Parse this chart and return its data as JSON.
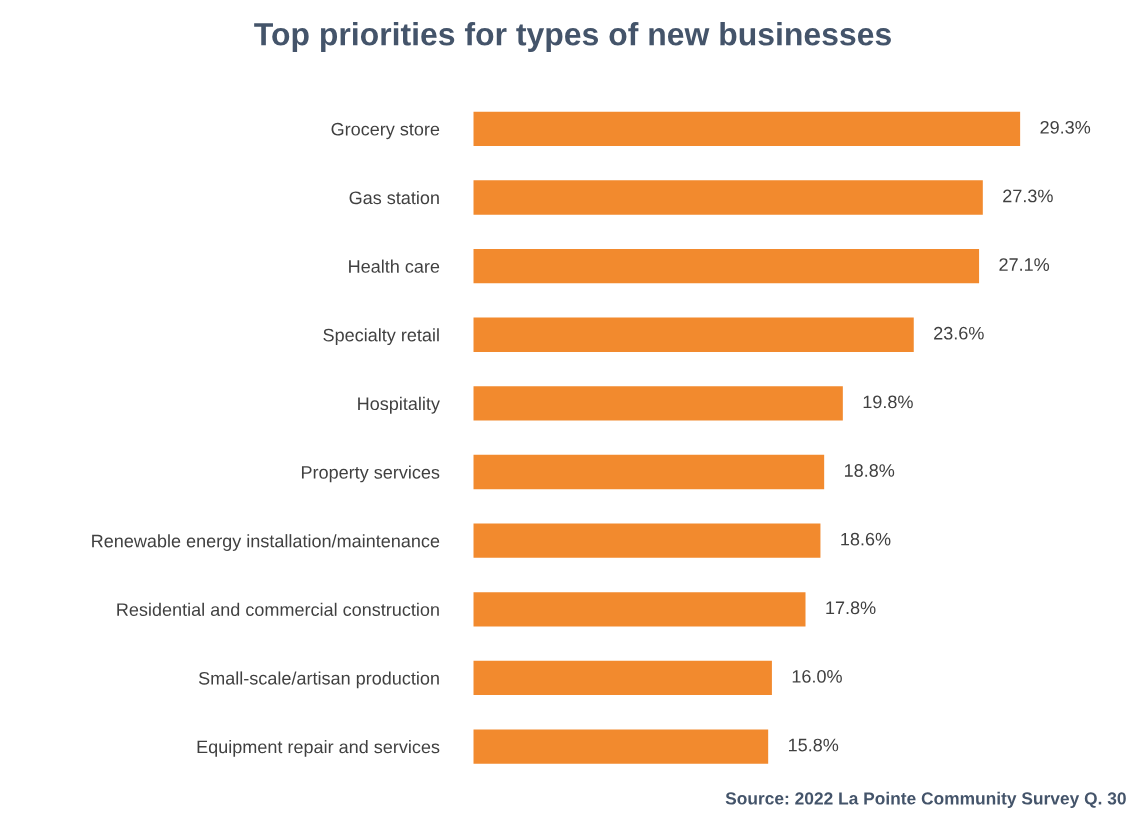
{
  "chart_data": {
    "type": "bar",
    "orientation": "horizontal",
    "title": "Top priorities for types of new businesses",
    "categories": [
      "Grocery store",
      "Gas station",
      "Health care",
      "Specialty retail",
      "Hospitality",
      "Property services",
      "Renewable energy installation/maintenance",
      "Residential and commercial construction",
      "Small-scale/artisan production",
      "Equipment repair and services"
    ],
    "values": [
      29.3,
      27.3,
      27.1,
      23.6,
      19.8,
      18.8,
      18.6,
      17.8,
      16.0,
      15.8
    ],
    "value_labels": [
      "29.3%",
      "27.3%",
      "27.1%",
      "23.6%",
      "19.8%",
      "18.8%",
      "18.6%",
      "17.8%",
      "16.0%",
      "15.8%"
    ],
    "color": "#f28a2e",
    "annotations": [
      "Source: 2022 La Pointe Community Survey Q. 30"
    ],
    "grid": false,
    "legend": false
  }
}
